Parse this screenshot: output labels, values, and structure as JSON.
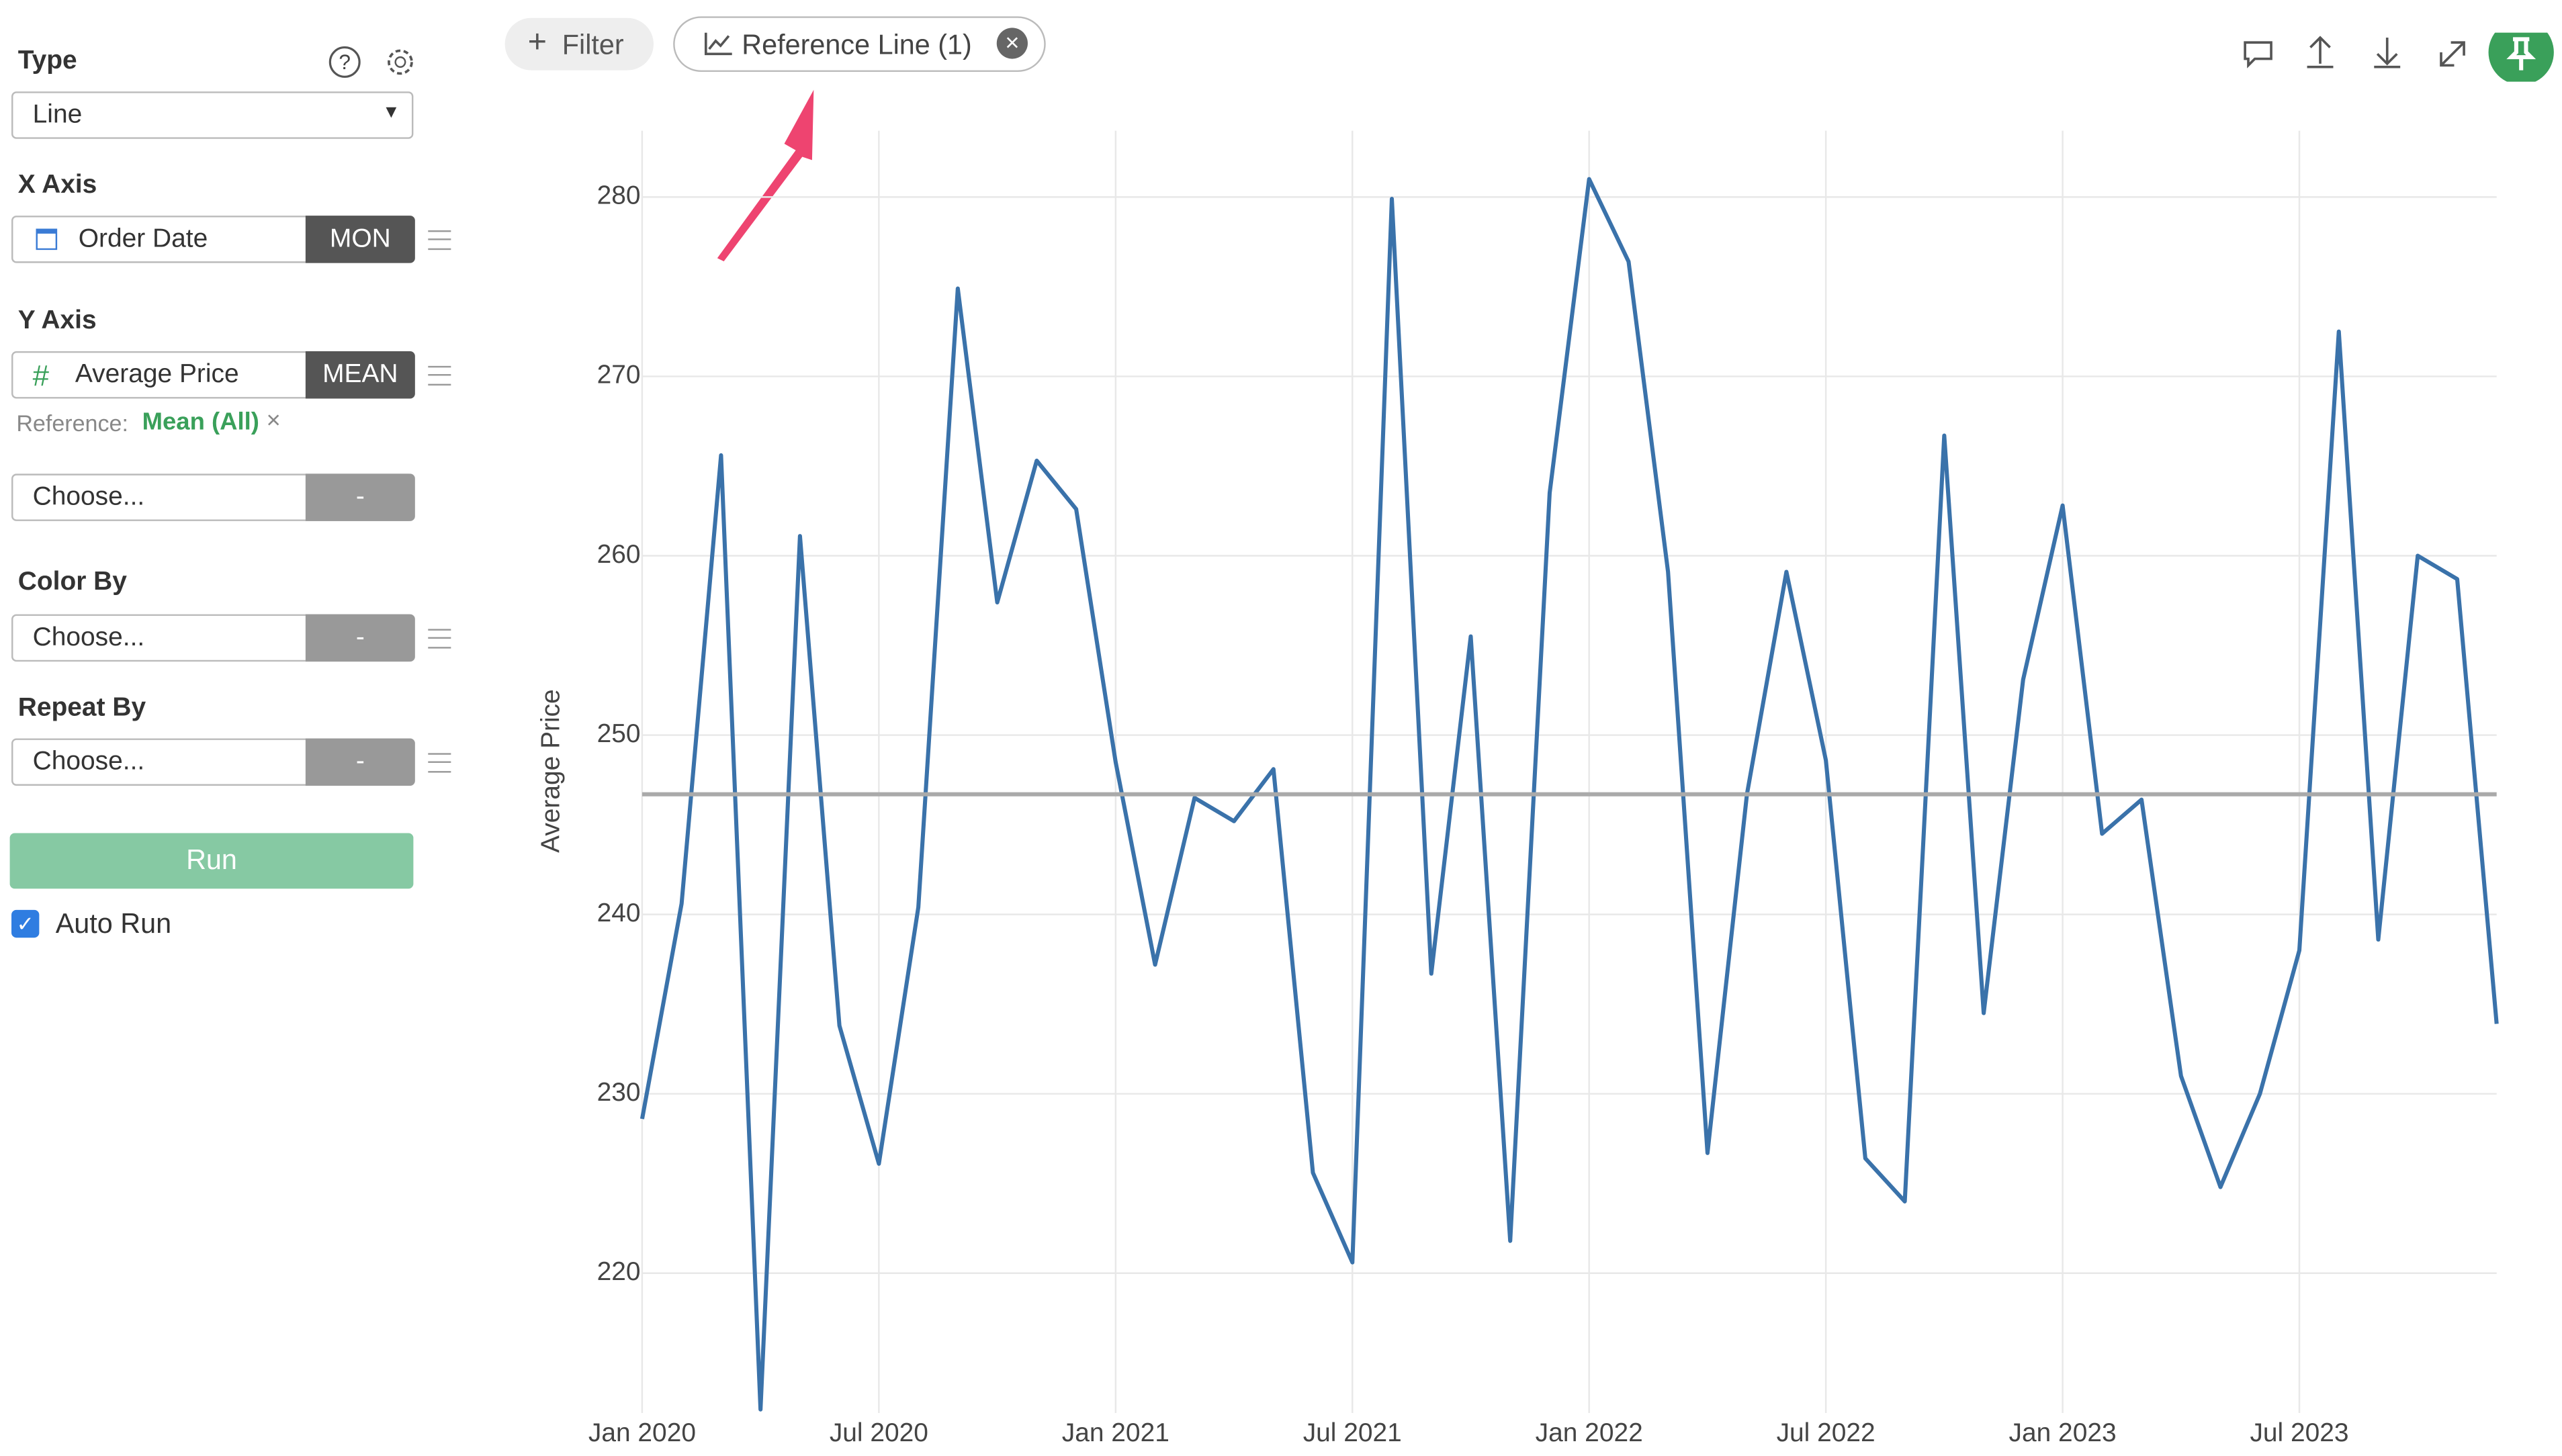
{
  "sidebar": {
    "type_label": "Type",
    "type_value": "Line",
    "x_axis_label": "X Axis",
    "x_field": "Order Date",
    "x_agg": "MON",
    "y_axis_label": "Y Axis",
    "y_field": "Average Price",
    "y_agg": "MEAN",
    "reference_prefix": "Reference:",
    "reference_value": "Mean (All)",
    "y2_placeholder": "Choose...",
    "y2_agg": "-",
    "color_by_label": "Color By",
    "color_placeholder": "Choose...",
    "color_agg": "-",
    "repeat_by_label": "Repeat By",
    "repeat_placeholder": "Choose...",
    "repeat_agg": "-",
    "run": "Run",
    "auto_run": "Auto Run"
  },
  "toolbar": {
    "filter": "Filter",
    "reference_line": "Reference Line (1)"
  },
  "chart_data": {
    "type": "line",
    "y_label": "Average Price",
    "color": "#3a72aa",
    "categories": [
      "Jan 2020",
      null,
      null,
      null,
      null,
      null,
      "Jul 2020",
      null,
      null,
      null,
      null,
      null,
      "Jan 2021",
      null,
      null,
      null,
      null,
      null,
      "Jul 2021",
      null,
      null,
      null,
      null,
      null,
      "Jan 2022",
      null,
      null,
      null,
      null,
      null,
      "Jul 2022",
      null,
      null,
      null,
      null,
      null,
      "Jan 2023",
      null,
      null,
      null,
      null,
      null,
      "Jul 2023",
      null,
      null,
      null,
      null,
      null
    ],
    "values": [
      228.6,
      240.6,
      265.6,
      212.4,
      261.1,
      233.8,
      226.1,
      240.4,
      274.9,
      257.4,
      265.3,
      262.6,
      248.5,
      237.2,
      246.5,
      245.2,
      248.1,
      225.6,
      220.6,
      279.9,
      236.7,
      255.5,
      221.8,
      263.5,
      281.0,
      276.4,
      259.1,
      226.7,
      246.7,
      259.1,
      248.6,
      226.4,
      224.0,
      266.7,
      234.5,
      253.1,
      262.8,
      244.5,
      246.4,
      231.0,
      224.8,
      230.0,
      238.0,
      272.5,
      238.6,
      260.0,
      258.7,
      233.9
    ],
    "reference_line": {
      "value": 246.7,
      "color": "#aaaaaa"
    },
    "ylim": [
      212.2,
      283.7
    ],
    "yticks": [
      220,
      230,
      240,
      250,
      260,
      270,
      280
    ],
    "grid": true
  }
}
